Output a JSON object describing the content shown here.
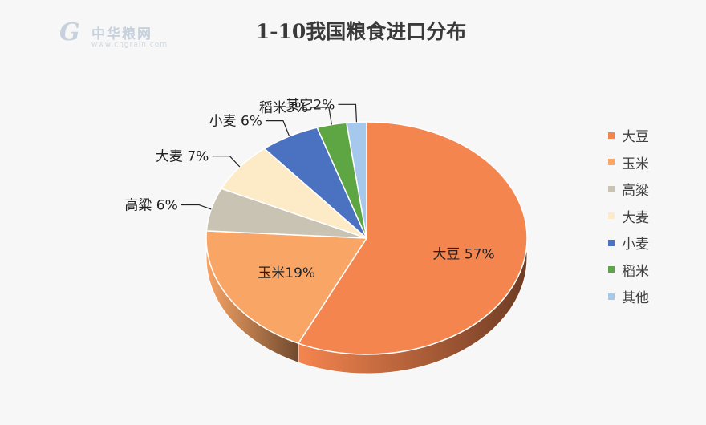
{
  "watermark": {
    "mark": "G",
    "name": "中华粮网",
    "url": "www.cngrain.com"
  },
  "chart_data": {
    "type": "pie",
    "title": "1-10我国粮食进口分布",
    "legend_position": "right",
    "categories": [
      "大豆",
      "玉米",
      "高粱",
      "大麦",
      "小麦",
      "稻米",
      "其他"
    ],
    "values": [
      57,
      19,
      6,
      7,
      6,
      3,
      2
    ],
    "unit": "%",
    "data_labels": [
      "大豆 57%",
      "玉米19%",
      "高粱 6%",
      "大麦 7%",
      "小麦 6%",
      "稻米3%",
      "其它2%"
    ],
    "colors": [
      "#f5854f",
      "#f9a566",
      "#c8c3b2",
      "#fdebc8",
      "#4a72c0",
      "#5ea644",
      "#a6c8ec"
    ]
  }
}
